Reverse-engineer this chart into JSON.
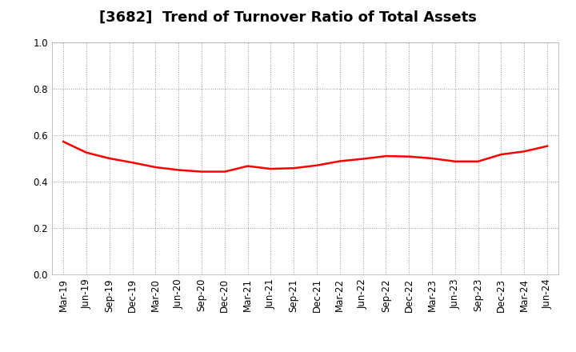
{
  "title": "[3682]  Trend of Turnover Ratio of Total Assets",
  "x_labels": [
    "Mar-19",
    "Jun-19",
    "Sep-19",
    "Dec-19",
    "Mar-20",
    "Jun-20",
    "Sep-20",
    "Dec-20",
    "Mar-21",
    "Jun-21",
    "Sep-21",
    "Dec-21",
    "Mar-22",
    "Jun-22",
    "Sep-22",
    "Dec-22",
    "Mar-23",
    "Jun-23",
    "Sep-23",
    "Dec-23",
    "Mar-24",
    "Jun-24"
  ],
  "y_values": [
    0.572,
    0.525,
    0.5,
    0.482,
    0.462,
    0.45,
    0.443,
    0.443,
    0.467,
    0.455,
    0.458,
    0.47,
    0.488,
    0.498,
    0.51,
    0.508,
    0.5,
    0.487,
    0.487,
    0.517,
    0.53,
    0.553
  ],
  "line_color": "#FF0000",
  "ylim": [
    0.0,
    1.0
  ],
  "yticks": [
    0.0,
    0.2,
    0.4,
    0.6,
    0.8,
    1.0
  ],
  "background_color": "#FFFFFF",
  "plot_bg_color": "#FFFFFF",
  "grid_color": "#999999",
  "title_fontsize": 13,
  "tick_fontsize": 8.5,
  "line_width": 1.8
}
